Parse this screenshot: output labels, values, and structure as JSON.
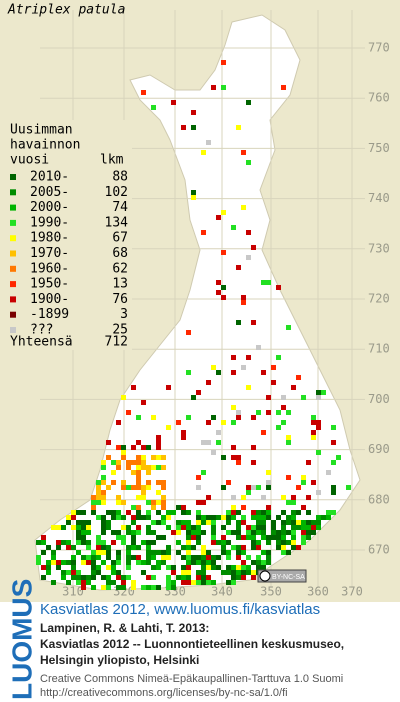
{
  "title": "Atriplex patula",
  "legend": {
    "heading": [
      "Uusimman",
      "havainnon",
      "vuosi"
    ],
    "count_heading": "lkm",
    "rows": [
      {
        "label": "2010-",
        "count": 88,
        "color": "#006400"
      },
      {
        "label": "2005-",
        "count": 102,
        "color": "#008c00"
      },
      {
        "label": "2000-",
        "count": 74,
        "color": "#00b400"
      },
      {
        "label": "1990-",
        "count": 134,
        "color": "#22e022"
      },
      {
        "label": "1980-",
        "count": 67,
        "color": "#ffff00"
      },
      {
        "label": "1970-",
        "count": 68,
        "color": "#ffc000"
      },
      {
        "label": "1960-",
        "count": 62,
        "color": "#ff7800"
      },
      {
        "label": "1950-",
        "count": 13,
        "color": "#ff2800"
      },
      {
        "label": "1900-",
        "count": 76,
        "color": "#c80000"
      },
      {
        "label": "-1899",
        "count": 3,
        "color": "#780000"
      },
      {
        "label": "???",
        "count": 25,
        "color": "#c8c8c8"
      }
    ],
    "total_label": "Yhteensä",
    "total": 712
  },
  "grid": {
    "x_labels": [
      310,
      320,
      330,
      340,
      350,
      360,
      370
    ],
    "y_labels": [
      770,
      760,
      750,
      740,
      730,
      720,
      710,
      700,
      690,
      680,
      670
    ]
  },
  "license_badge": "BY-NC-SA",
  "footer": {
    "logo": "LUOMUS",
    "link": "Kasviatlas 2012, www.luomus.fi/kasviatlas",
    "citation": [
      "Lampinen, R. & Lahti, T. 2013:",
      "Kasviatlas 2012 -- Luonnontieteellinen keskusmuseo,",
      "Helsingin yliopisto, Helsinki"
    ],
    "license": [
      "Creative Commons Nimeä-Epäkaupallinen-Tarttuva 1.0 Suomi",
      "http://creativecommons.org/licenses/by-nc-sa/1.0/fi"
    ]
  }
}
